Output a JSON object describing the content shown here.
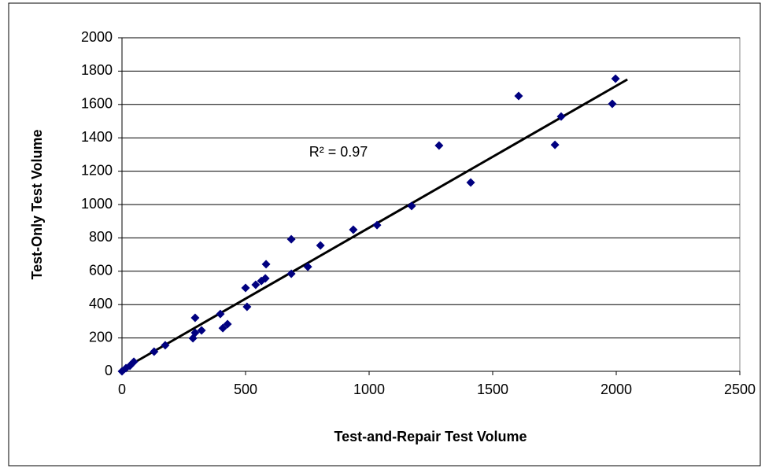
{
  "chart_data": {
    "type": "scatter",
    "x_label": "Test-and-Repair Test Volume",
    "y_label": "Test-Only Test Volume",
    "annotation": "R² = 0.97",
    "color": "#000080",
    "grid": true,
    "xlim": [
      0,
      2500
    ],
    "xticks": [
      0,
      500,
      1000,
      1500,
      2000,
      2500
    ],
    "ylim": [
      0,
      2000
    ],
    "yticks": [
      0,
      200,
      400,
      600,
      800,
      1000,
      1200,
      1400,
      1600,
      1800,
      2000
    ],
    "x": [
      0,
      16,
      32,
      48,
      130,
      175,
      296,
      287,
      296,
      322,
      398,
      408,
      427,
      500,
      506,
      541,
      564,
      580,
      583,
      685,
      685,
      752,
      803,
      936,
      1032,
      1172,
      1283,
      1411,
      1605,
      1752,
      1777,
      1984,
      1997
    ],
    "y": [
      0,
      19,
      33,
      57,
      118,
      156,
      321,
      198,
      231,
      245,
      344,
      259,
      283,
      500,
      387,
      519,
      542,
      557,
      642,
      792,
      585,
      627,
      755,
      849,
      877,
      991,
      1354,
      1132,
      1651,
      1358,
      1528,
      1604,
      1755
    ],
    "trendline": {
      "x": [
        0,
        2045
      ],
      "y": [
        10,
        1750
      ]
    }
  }
}
